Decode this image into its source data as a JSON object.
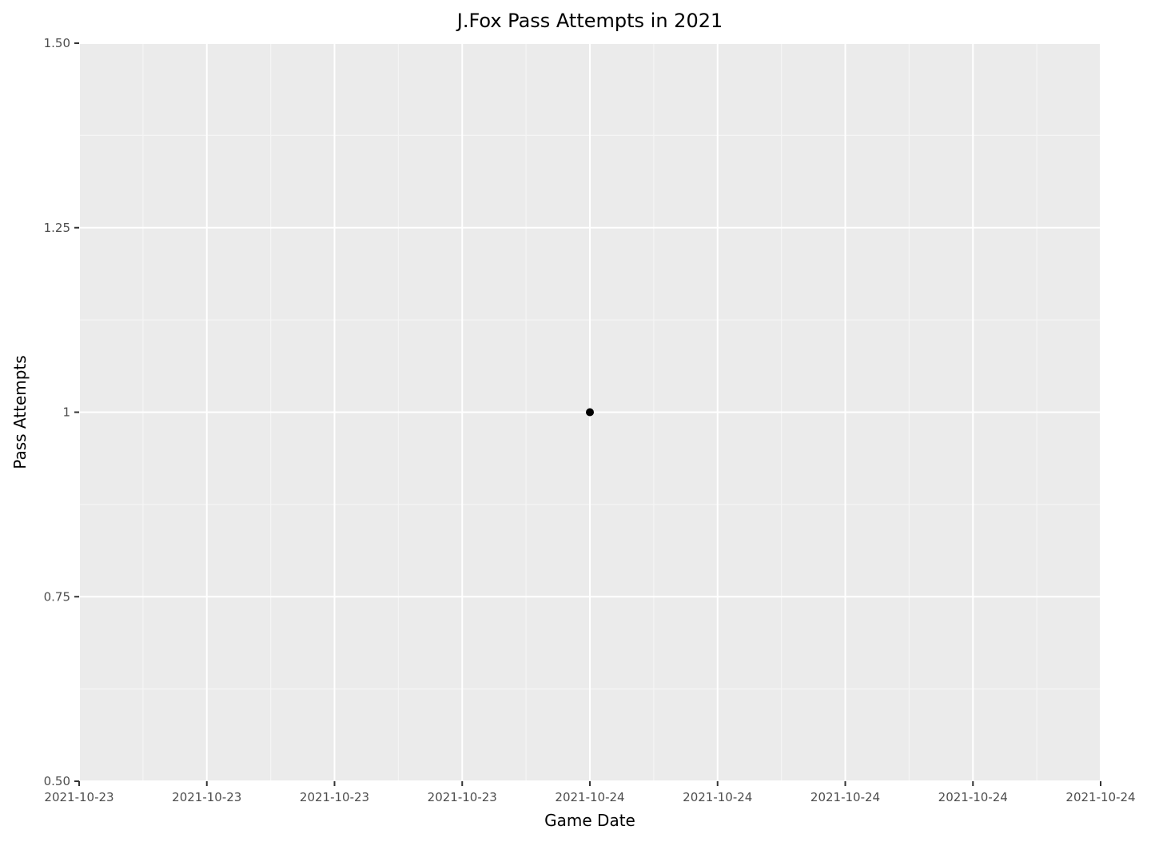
{
  "chart_data": {
    "type": "scatter",
    "title": "J.Fox Pass Attempts in 2021",
    "xlabel": "Game Date",
    "ylabel": "Pass Attempts",
    "x_axis": {
      "kind": "date",
      "ticks": [
        "2021-10-23",
        "2021-10-23",
        "2021-10-23",
        "2021-10-23",
        "2021-10-24",
        "2021-10-24",
        "2021-10-24",
        "2021-10-24",
        "2021-10-24"
      ]
    },
    "y_axis": {
      "ylim": [
        0.5,
        1.5
      ],
      "ticks": [
        0.5,
        0.75,
        1,
        1.25,
        1.5
      ],
      "tick_labels": [
        "0.50",
        "0.75",
        "1",
        "1.25",
        "1.50"
      ]
    },
    "series": [
      {
        "points": [
          {
            "x": "2021-10-24",
            "y": 1
          }
        ]
      }
    ],
    "grid": true,
    "legend": "none",
    "colors": {
      "panel_background": "#ebebeb",
      "grid_major": "#ffffff",
      "grid_minor": "#f5f5f5",
      "point": "#000000",
      "axis_tick": "#333333",
      "tick_label": "#4d4d4d"
    }
  }
}
